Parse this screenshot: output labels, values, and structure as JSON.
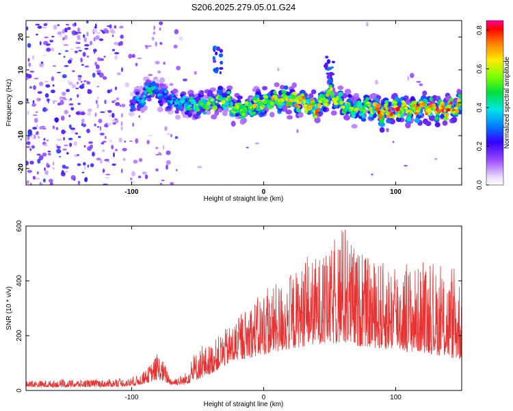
{
  "title": "S206.2025.279.05.01.G24",
  "chart_data": [
    {
      "type": "heatmap",
      "name": "spectrogram",
      "xlabel": "Height of straight line (km)",
      "ylabel": "Frequency (Hz)",
      "xlim": [
        -180,
        150
      ],
      "ylim": [
        -25,
        25
      ],
      "xticks": [
        -100,
        0,
        100
      ],
      "yticks": [
        -20,
        -10,
        0,
        10,
        20
      ],
      "xtick_labels": [
        "-100",
        "0",
        "100"
      ],
      "ytick_labels": [
        "-20",
        "-10",
        "0",
        "10",
        "20"
      ],
      "colorbar": {
        "label": "Normalized spectral amplitude",
        "range": [
          0.0,
          0.85
        ],
        "ticks": [
          0.0,
          0.2,
          0.4,
          0.6,
          0.8
        ],
        "tick_labels": [
          "0.0",
          "0.2",
          "0.4",
          "0.6",
          "0.8"
        ]
      },
      "ridge": {
        "x": [
          -100,
          -90,
          -85,
          -80,
          -70,
          -60,
          -50,
          -40,
          -30,
          -20,
          -10,
          0,
          10,
          20,
          30,
          40,
          50,
          60,
          70,
          80,
          90,
          100,
          110,
          120,
          130,
          140,
          150
        ],
        "freq": [
          0,
          2,
          5,
          3,
          1,
          0,
          -1,
          0,
          1,
          -2,
          -1,
          0,
          1,
          1,
          0,
          -2,
          3,
          -1,
          -2,
          -1,
          -3,
          -2,
          -2,
          -1,
          -2,
          -2,
          -1
        ],
        "amplitude": [
          0.25,
          0.35,
          0.4,
          0.3,
          0.3,
          0.4,
          0.45,
          0.5,
          0.5,
          0.5,
          0.55,
          0.55,
          0.6,
          0.6,
          0.6,
          0.65,
          0.55,
          0.55,
          0.5,
          0.5,
          0.7,
          0.7,
          0.6,
          0.7,
          0.75,
          0.7,
          0.6
        ]
      },
      "features": [
        {
          "x": -35,
          "freq": 13,
          "amplitude": 0.3
        },
        {
          "x": 50,
          "freq": 10,
          "amplitude": 0.3
        }
      ]
    },
    {
      "type": "line",
      "name": "snr",
      "color": "#e83232",
      "xlabel": "Height of straight line (km)",
      "ylabel": "SNR (10 * v/v)",
      "xlim": [
        -180,
        150
      ],
      "ylim": [
        0,
        600
      ],
      "xticks": [
        -100,
        0,
        100
      ],
      "yticks": [
        0,
        200,
        400,
        600
      ],
      "xtick_labels": [
        "-100",
        "0",
        "100"
      ],
      "ytick_labels": [
        "0",
        "200",
        "400",
        "600"
      ],
      "envelope": {
        "x": [
          -180,
          -150,
          -120,
          -100,
          -90,
          -80,
          -75,
          -70,
          -60,
          -50,
          -40,
          -30,
          -20,
          -10,
          0,
          10,
          20,
          30,
          40,
          50,
          60,
          70,
          80,
          90,
          100,
          110,
          120,
          130,
          140,
          150
        ],
        "low": [
          12,
          12,
          13,
          15,
          25,
          40,
          30,
          20,
          20,
          40,
          60,
          90,
          110,
          120,
          130,
          140,
          150,
          160,
          170,
          170,
          170,
          160,
          160,
          150,
          150,
          140,
          140,
          130,
          120,
          110
        ],
        "high": [
          35,
          38,
          40,
          45,
          70,
          135,
          100,
          45,
          60,
          150,
          170,
          220,
          260,
          320,
          360,
          390,
          420,
          460,
          490,
          500,
          600,
          520,
          480,
          470,
          470,
          460,
          450,
          440,
          430,
          420
        ]
      }
    }
  ]
}
